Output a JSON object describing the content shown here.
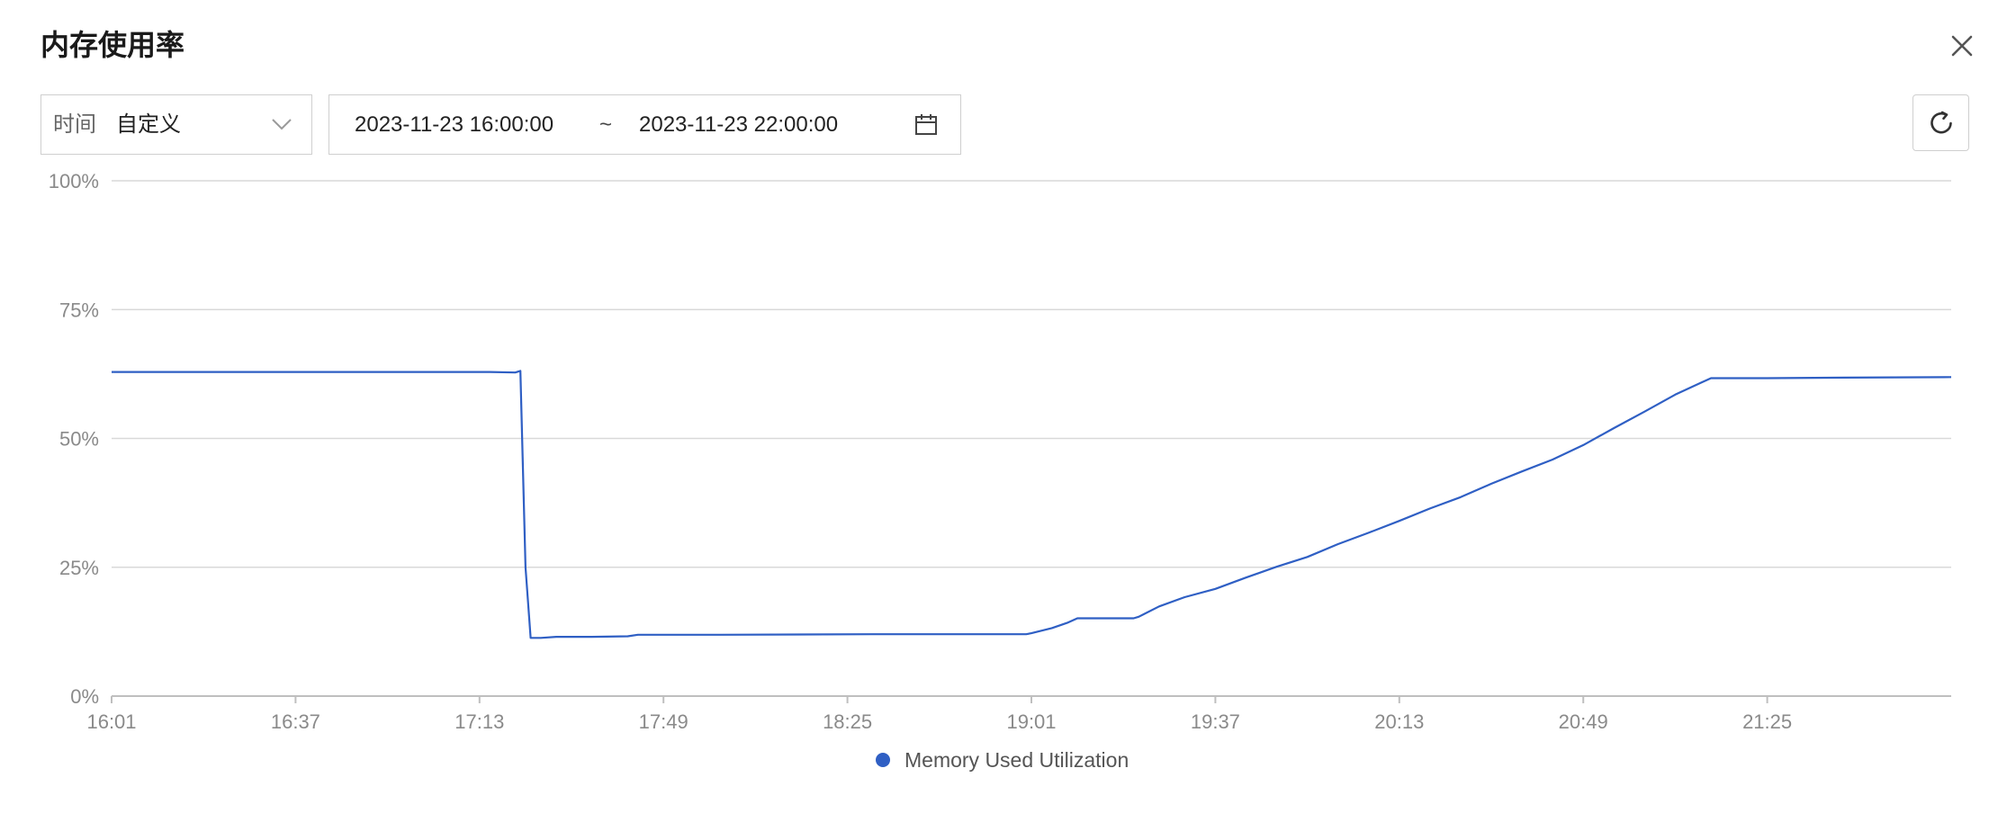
{
  "header": {
    "title": "内存使用率",
    "close_icon": "close-icon"
  },
  "filters": {
    "time_label": "时间",
    "time_value": "自定义",
    "start": "2023-11-23 16:00:00",
    "separator": "~",
    "end": "2023-11-23 22:00:00",
    "calendar_icon": "calendar-icon",
    "refresh_icon": "refresh-icon"
  },
  "colors": {
    "series": "#2f5fc4",
    "grid": "#d9d9d9",
    "axis": "#bfbfbf"
  },
  "chart_data": {
    "type": "line",
    "ylim": [
      0,
      100
    ],
    "xlim": [
      "16:01",
      "22:01"
    ],
    "yticks": [
      0,
      25,
      50,
      75,
      100
    ],
    "ytick_labels": [
      "0%",
      "25%",
      "50%",
      "75%",
      "100%"
    ],
    "xtick_labels": [
      "16:01",
      "16:37",
      "17:13",
      "17:49",
      "18:25",
      "19:01",
      "19:37",
      "20:13",
      "20:49",
      "21:25"
    ],
    "grid": true,
    "legend": "bottom-center",
    "series": [
      {
        "name": "Memory Used Utilization",
        "points": [
          [
            "16:01",
            62.9
          ],
          [
            "16:30",
            62.9
          ],
          [
            "17:00",
            62.9
          ],
          [
            "17:15",
            62.9
          ],
          [
            "17:20",
            62.8
          ],
          [
            "17:21",
            63.1
          ],
          [
            "17:22",
            25.0
          ],
          [
            "17:23",
            11.3
          ],
          [
            "17:25",
            11.3
          ],
          [
            "17:28",
            11.5
          ],
          [
            "17:35",
            11.5
          ],
          [
            "17:42",
            11.6
          ],
          [
            "17:44",
            11.9
          ],
          [
            "18:00",
            11.9
          ],
          [
            "18:30",
            12.0
          ],
          [
            "19:00",
            12.0
          ],
          [
            "19:01",
            12.2
          ],
          [
            "19:05",
            13.2
          ],
          [
            "19:08",
            14.2
          ],
          [
            "19:10",
            15.1
          ],
          [
            "19:15",
            15.1
          ],
          [
            "19:21",
            15.1
          ],
          [
            "19:22",
            15.4
          ],
          [
            "19:26",
            17.4
          ],
          [
            "19:31",
            19.2
          ],
          [
            "19:37",
            20.8
          ],
          [
            "19:43",
            23.0
          ],
          [
            "19:49",
            25.1
          ],
          [
            "19:55",
            27.0
          ],
          [
            "20:01",
            29.5
          ],
          [
            "20:07",
            31.7
          ],
          [
            "20:13",
            34.0
          ],
          [
            "20:19",
            36.4
          ],
          [
            "20:25",
            38.6
          ],
          [
            "20:31",
            41.2
          ],
          [
            "20:37",
            43.6
          ],
          [
            "20:43",
            45.9
          ],
          [
            "20:49",
            48.7
          ],
          [
            "20:55",
            52.0
          ],
          [
            "21:01",
            55.2
          ],
          [
            "21:07",
            58.5
          ],
          [
            "21:12",
            60.8
          ],
          [
            "21:14",
            61.7
          ],
          [
            "21:25",
            61.7
          ],
          [
            "21:40",
            61.8
          ],
          [
            "22:01",
            61.9
          ]
        ]
      }
    ]
  }
}
